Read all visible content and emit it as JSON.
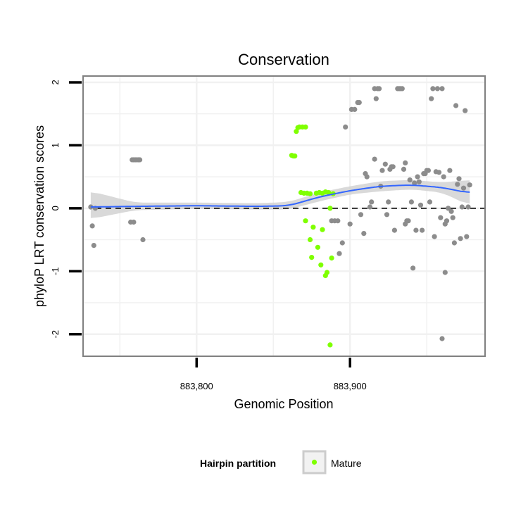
{
  "chart_data": {
    "type": "scatter",
    "title": "Conservation",
    "xlabel": "Genomic Position",
    "ylabel": "phyloP LRT conservation scores",
    "xlim": [
      883726,
      883988
    ],
    "ylim": [
      -2.35,
      2.1
    ],
    "x_ticks": [
      883800,
      883900
    ],
    "x_tick_labels": [
      "883,800",
      "883,900"
    ],
    "y_ticks": [
      -2,
      -1,
      0,
      1,
      2
    ],
    "y_tick_labels": [
      "-2",
      "-1",
      "0",
      "1",
      "2"
    ],
    "grid": true,
    "reference_line": {
      "y": 0,
      "style": "dashed"
    },
    "legend": {
      "title": "Hairpin partition",
      "placement": "bottom",
      "entries": [
        {
          "label": "Mature",
          "color": "#7fff00"
        }
      ]
    },
    "colors": {
      "other": "#8c8c8c",
      "mature": "#7fff00",
      "smooth": "#3366ff",
      "ribbon": "#cfcfcf"
    },
    "series": [
      {
        "name": "Other",
        "color": "#8c8c8c",
        "points": [
          [
            883731,
            0.02
          ],
          [
            883732,
            -0.28
          ],
          [
            883733,
            -0.59
          ],
          [
            883734,
            0.0
          ],
          [
            883758,
            0.77
          ],
          [
            883759,
            0.77
          ],
          [
            883760,
            0.77
          ],
          [
            883761,
            0.77
          ],
          [
            883762,
            0.77
          ],
          [
            883763,
            0.77
          ],
          [
            883757,
            -0.22
          ],
          [
            883759,
            -0.22
          ],
          [
            883765,
            -0.5
          ],
          [
            883888,
            -0.2
          ],
          [
            883890,
            -0.2
          ],
          [
            883892,
            -0.2
          ],
          [
            883893,
            -0.72
          ],
          [
            883895,
            -0.55
          ],
          [
            883897,
            1.29
          ],
          [
            883900,
            -0.25
          ],
          [
            883901,
            1.57
          ],
          [
            883903,
            1.57
          ],
          [
            883905,
            1.68
          ],
          [
            883906,
            1.68
          ],
          [
            883907,
            -0.1
          ],
          [
            883909,
            -0.4
          ],
          [
            883910,
            0.55
          ],
          [
            883911,
            0.5
          ],
          [
            883913,
            0.02
          ],
          [
            883914,
            0.1
          ],
          [
            883916,
            0.78
          ],
          [
            883916,
            1.9
          ],
          [
            883918,
            1.9
          ],
          [
            883919,
            1.9
          ],
          [
            883917,
            1.74
          ],
          [
            883920,
            0.35
          ],
          [
            883921,
            0.6
          ],
          [
            883923,
            0.7
          ],
          [
            883924,
            -0.1
          ],
          [
            883925,
            0.1
          ],
          [
            883926,
            0.62
          ],
          [
            883927,
            0.66
          ],
          [
            883928,
            0.66
          ],
          [
            883929,
            -0.35
          ],
          [
            883931,
            1.9
          ],
          [
            883932,
            1.9
          ],
          [
            883933,
            1.9
          ],
          [
            883934,
            1.9
          ],
          [
            883935,
            0.62
          ],
          [
            883936,
            0.72
          ],
          [
            883936,
            -0.25
          ],
          [
            883937,
            -0.2
          ],
          [
            883938,
            -0.2
          ],
          [
            883939,
            0.45
          ],
          [
            883940,
            0.1
          ],
          [
            883941,
            -0.95
          ],
          [
            883942,
            0.4
          ],
          [
            883943,
            -0.35
          ],
          [
            883944,
            0.5
          ],
          [
            883945,
            0.42
          ],
          [
            883946,
            0.05
          ],
          [
            883947,
            -0.35
          ],
          [
            883948,
            0.55
          ],
          [
            883949,
            0.55
          ],
          [
            883950,
            0.6
          ],
          [
            883951,
            0.6
          ],
          [
            883952,
            0.1
          ],
          [
            883953,
            1.74
          ],
          [
            883954,
            1.9
          ],
          [
            883955,
            -0.45
          ],
          [
            883956,
            0.58
          ],
          [
            883957,
            1.9
          ],
          [
            883958,
            0.57
          ],
          [
            883959,
            -0.15
          ],
          [
            883960,
            1.9
          ],
          [
            883960,
            -2.07
          ],
          [
            883961,
            0.5
          ],
          [
            883962,
            -0.25
          ],
          [
            883962,
            -1.02
          ],
          [
            883963,
            -0.2
          ],
          [
            883964,
            0.0
          ],
          [
            883965,
            0.6
          ],
          [
            883966,
            -0.05
          ],
          [
            883967,
            -0.15
          ],
          [
            883968,
            -0.55
          ],
          [
            883969,
            1.63
          ],
          [
            883970,
            0.38
          ],
          [
            883971,
            0.47
          ],
          [
            883972,
            -0.48
          ],
          [
            883973,
            0.02
          ],
          [
            883974,
            0.32
          ],
          [
            883975,
            1.55
          ],
          [
            883976,
            -0.45
          ],
          [
            883977,
            0.02
          ],
          [
            883978,
            0.37
          ]
        ]
      },
      {
        "name": "Mature",
        "color": "#7fff00",
        "points": [
          [
            883862,
            0.84
          ],
          [
            883863,
            0.83
          ],
          [
            883864,
            0.83
          ],
          [
            883865,
            1.22
          ],
          [
            883866,
            1.28
          ],
          [
            883867,
            1.29
          ],
          [
            883869,
            1.29
          ],
          [
            883871,
            1.29
          ],
          [
            883868,
            0.25
          ],
          [
            883870,
            0.24
          ],
          [
            883872,
            0.24
          ],
          [
            883874,
            0.23
          ],
          [
            883878,
            0.24
          ],
          [
            883880,
            0.25
          ],
          [
            883882,
            0.24
          ],
          [
            883884,
            0.26
          ],
          [
            883886,
            0.25
          ],
          [
            883889,
            0.23
          ],
          [
            883871,
            -0.2
          ],
          [
            883874,
            -0.5
          ],
          [
            883876,
            -0.3
          ],
          [
            883875,
            -0.78
          ],
          [
            883879,
            -0.62
          ],
          [
            883881,
            -0.9
          ],
          [
            883882,
            -0.34
          ],
          [
            883884,
            -1.07
          ],
          [
            883885,
            -1.02
          ],
          [
            883887,
            0.0
          ],
          [
            883888,
            -0.79
          ],
          [
            883887,
            -2.17
          ]
        ]
      }
    ],
    "smooth_fit": {
      "method": "loess",
      "x": [
        883731,
        883760,
        883800,
        883840,
        883860,
        883880,
        883900,
        883920,
        883940,
        883960,
        883978
      ],
      "y": [
        0.02,
        0.03,
        0.04,
        0.03,
        0.04,
        0.18,
        0.28,
        0.35,
        0.37,
        0.33,
        0.24
      ],
      "ci_low": [
        -0.17,
        -0.03,
        -0.01,
        -0.02,
        -0.02,
        0.11,
        0.22,
        0.27,
        0.3,
        0.25,
        0.04
      ],
      "ci_high": [
        0.27,
        0.09,
        0.09,
        0.08,
        0.1,
        0.25,
        0.35,
        0.43,
        0.45,
        0.41,
        0.45
      ]
    }
  }
}
